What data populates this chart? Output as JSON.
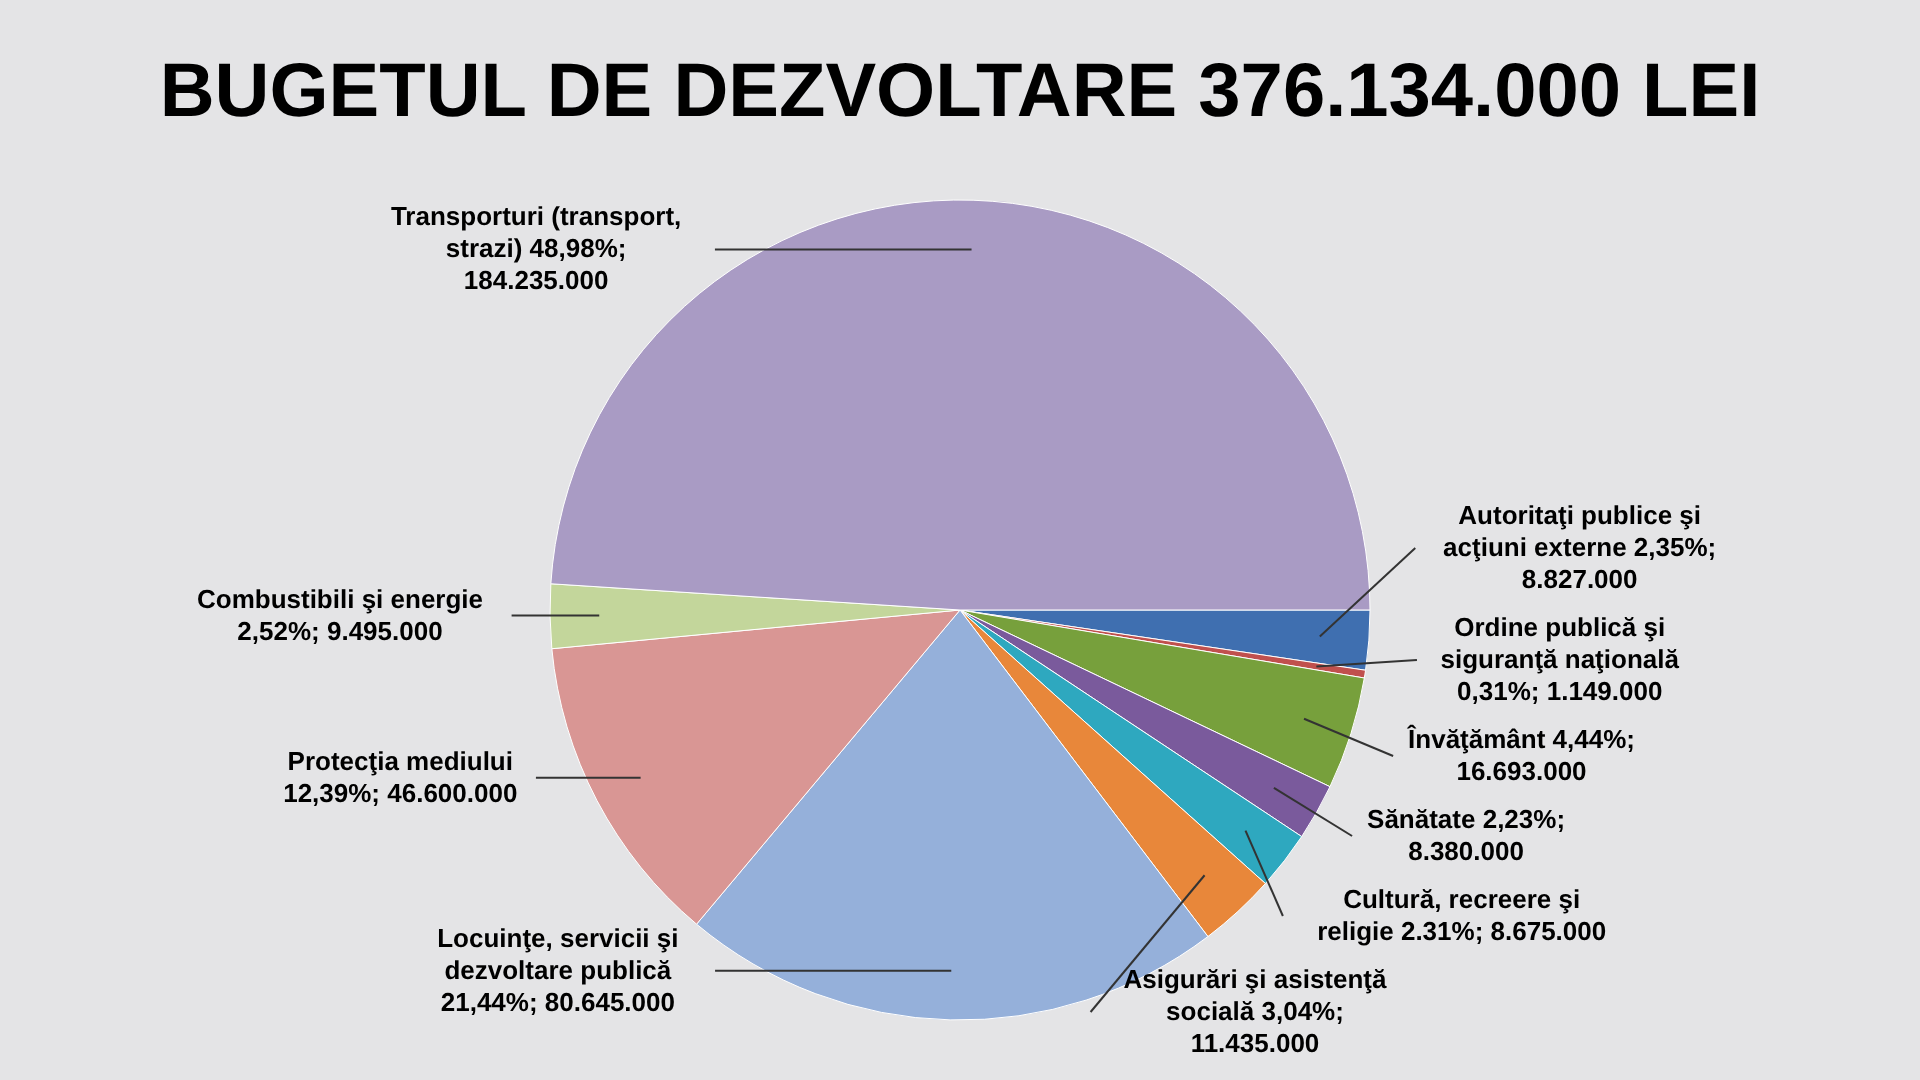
{
  "chart_data": {
    "type": "pie",
    "title": "BUGETUL DE DEZVOLTARE 376.134.000 LEI",
    "categories": [
      "Autoritaţi publice şi acţiuni externe",
      "Ordine publică şi siguranţă naţională",
      "Învăţământ",
      "Sănătate",
      "Cultură, recreere şi religie",
      "Asigurări şi asistenţă socială",
      "Locuinţe, servicii şi dezvoltare publică",
      "Protecţia mediului",
      "Combustibili şi energie",
      "Transporturi (transport, strazi)"
    ],
    "values": [
      8827000,
      1149000,
      16693000,
      8380000,
      8675000,
      11435000,
      80645000,
      46600000,
      9495000,
      184235000
    ],
    "value_labels": [
      "2,35%; 8.827.000",
      "0,31%; 1.149.000",
      "4,44%; 16.693.000",
      "2,23%; 8.380.000",
      "2.31%; 8.675.000",
      "3,04%; 11.435.000",
      "21,44%; 80.645.000",
      "12,39%; 46.600.000",
      "2,52%; 9.495.000",
      "48,98%; 184.235.000"
    ],
    "colors": [
      "#3f6fb0",
      "#c0504d",
      "#77a03c",
      "#7a5a9c",
      "#2ea8bf",
      "#e8873a",
      "#95b0da",
      "#d99694",
      "#c3d69b",
      "#a99bc4"
    ]
  }
}
